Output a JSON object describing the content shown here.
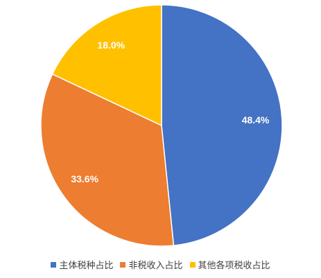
{
  "chart_data": {
    "type": "pie",
    "series": [
      {
        "name": "主体税种占比",
        "color": "#4472c4",
        "values": [
          48.4
        ],
        "value_labels": [
          "48.4%"
        ]
      },
      {
        "name": "非税收入占比",
        "color": "#ed7d31",
        "values": [
          33.6
        ],
        "value_labels": [
          "33.6%"
        ]
      },
      {
        "name": "其他各项税收占比",
        "color": "#ffc000",
        "values": [
          18.0
        ],
        "value_labels": [
          "18.0%"
        ]
      }
    ],
    "legend": "bottom"
  }
}
